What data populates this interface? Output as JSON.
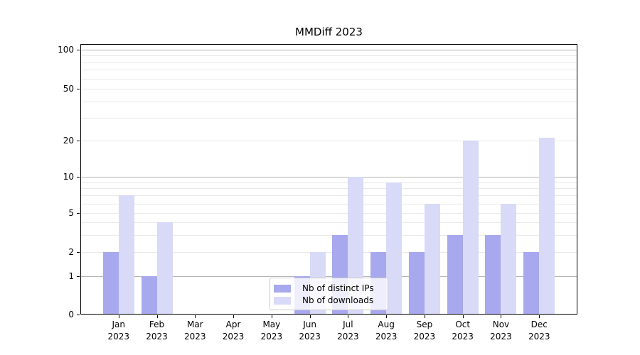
{
  "chart_data": {
    "type": "bar",
    "title": "MMDiff 2023",
    "categories": [
      "Jan",
      "Feb",
      "Mar",
      "Apr",
      "May",
      "Jun",
      "Jul",
      "Aug",
      "Sep",
      "Oct",
      "Nov",
      "Dec"
    ],
    "category_year": "2023",
    "series": [
      {
        "name": "Nb of distinct IPs",
        "color": "#a8a8ef",
        "values": [
          2,
          1,
          0,
          0,
          0,
          1,
          3,
          2,
          2,
          3,
          3,
          2
        ]
      },
      {
        "name": "Nb of downloads",
        "color": "#d9d9f8",
        "values": [
          7,
          4,
          0,
          0,
          0,
          2,
          10,
          9,
          6,
          20,
          6,
          21
        ]
      }
    ],
    "y_axis": {
      "scale": "symlog",
      "tick_labels": [
        "0",
        "1",
        "2",
        "5",
        "10",
        "20",
        "50",
        "100"
      ],
      "tick_values": [
        0,
        1,
        2,
        5,
        10,
        20,
        50,
        100
      ],
      "anchors": [
        [
          0,
          0
        ],
        [
          1,
          0.1417
        ],
        [
          2,
          0.231
        ],
        [
          5,
          0.3753
        ],
        [
          10,
          0.5091
        ],
        [
          20,
          0.643
        ],
        [
          50,
          0.8346
        ],
        [
          100,
          0.979
        ]
      ],
      "major_gridlines": [
        1,
        10,
        100
      ],
      "minor_gridlines": [
        2,
        3,
        4,
        5,
        6,
        7,
        8,
        9,
        20,
        30,
        40,
        50,
        60,
        70,
        80,
        90
      ]
    },
    "legend": {
      "position": "lower-center",
      "entries": [
        "Nb of distinct IPs",
        "Nb of downloads"
      ]
    },
    "grid": true,
    "xlabel": "",
    "ylabel": ""
  },
  "colors": {
    "bar_distinct_ips": "#a8a8ef",
    "bar_downloads": "#d9d9f8",
    "major_grid": "#b5b5b5",
    "minor_grid": "#e9e9e9",
    "spine": "#000000"
  }
}
